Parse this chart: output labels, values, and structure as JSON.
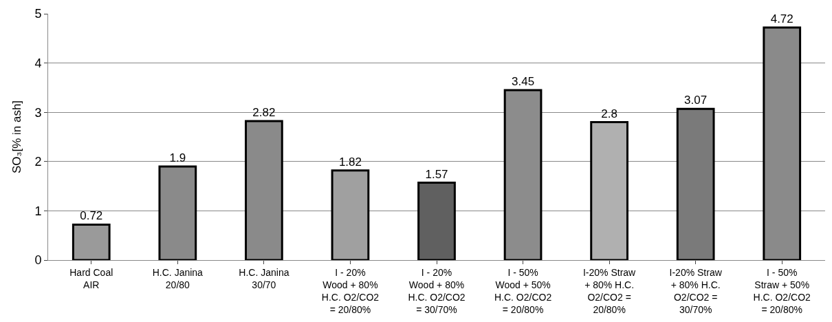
{
  "chart_data": {
    "type": "bar",
    "ylabel": "SO₃[% in ash]",
    "categories": [
      "Hard Coal AIR",
      "H.C. Janina 20/80",
      "H.C. Janina 30/70",
      "I - 20% Wood + 80% H.C. O2/CO2 = 20/80%",
      "I - 20% Wood + 80% H.C. O2/CO2 = 30/70%",
      "I - 50% Wood + 50% H.C. O2/CO2 = 20/80%",
      "I-20% Straw + 80% H.C. O2/CO2 = 20/80%",
      "I-20% Straw + 80% H.C. O2/CO2 = 30/70%",
      "I - 50% Straw + 50% H.C. O2/CO2 = 20/80%"
    ],
    "values": [
      0.72,
      1.9,
      2.82,
      1.82,
      1.57,
      3.45,
      2.8,
      3.07,
      4.72
    ],
    "colors": [
      "#9a9a9a",
      "#8a8a8a",
      "#8a8a8a",
      "#a0a0a0",
      "#606060",
      "#8c8c8c",
      "#b0b0b0",
      "#7a7a7a",
      "#8a8a8a"
    ],
    "data_labels": true,
    "ylim": [
      0,
      5
    ],
    "yticks": [
      0,
      1,
      2,
      3,
      4,
      5
    ],
    "grid": "y",
    "legend": false
  }
}
